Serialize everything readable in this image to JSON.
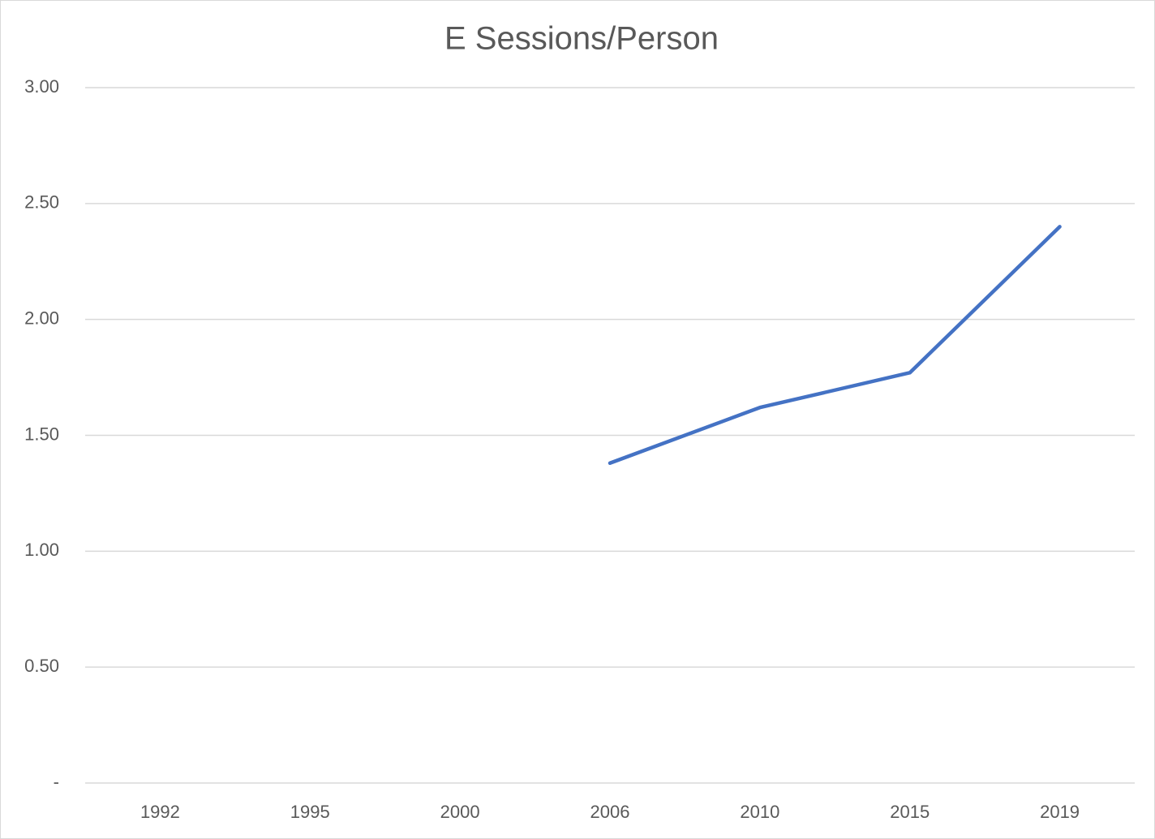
{
  "chart_data": {
    "type": "line",
    "title": "E Sessions/Person",
    "categories": [
      "1992",
      "1995",
      "2000",
      "2006",
      "2010",
      "2015",
      "2019"
    ],
    "values": [
      null,
      null,
      null,
      1.38,
      1.62,
      1.77,
      2.4
    ],
    "color": "#4472c4",
    "ylim": [
      0,
      3
    ],
    "yticks": [
      {
        "value": 0,
        "label": "-"
      },
      {
        "value": 0.5,
        "label": "0.50"
      },
      {
        "value": 1,
        "label": "1.00"
      },
      {
        "value": 1.5,
        "label": "1.50"
      },
      {
        "value": 2,
        "label": "2.00"
      },
      {
        "value": 2.5,
        "label": "2.50"
      },
      {
        "value": 3,
        "label": "3.00"
      }
    ],
    "grid": true
  }
}
